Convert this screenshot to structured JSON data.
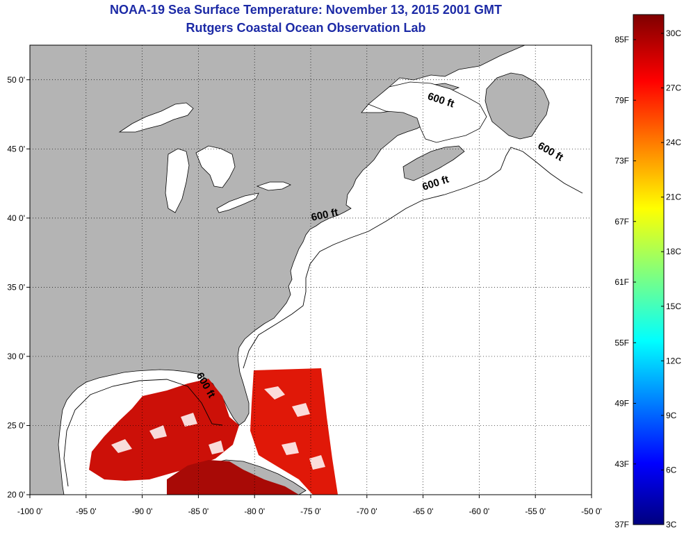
{
  "header": {
    "title_line1": "NOAA-19 Sea Surface Temperature:  November 13, 2015 2001 GMT",
    "title_line2": "Rutgers Coastal Ocean Observation Lab"
  },
  "map": {
    "lon_range": [
      -100,
      -50
    ],
    "lat_range": [
      20,
      52.5
    ],
    "lon_ticks": [
      -100,
      -95,
      -90,
      -85,
      -80,
      -75,
      -70,
      -65,
      -60,
      -55,
      -50
    ],
    "lat_ticks": [
      20,
      25,
      30,
      35,
      40,
      45,
      50
    ],
    "lon_labels": [
      "-100 0'",
      "-95 0'",
      "-90 0'",
      "-85 0'",
      "-80 0'",
      "-75 0'",
      "-70 0'",
      "-65 0'",
      "-60 0'",
      "-55 0'",
      "-50 0'"
    ],
    "lat_labels": [
      "20 0'",
      "25 0'",
      "30 0'",
      "35 0'",
      "40 0'",
      "45 0'",
      "50 0'"
    ],
    "grid": "dotted",
    "land_color": "#b4b4b4",
    "water_color": "#ffffff",
    "contour_labels": [
      {
        "text": "600 ft",
        "lon": -63.5,
        "lat": 48.3,
        "angle": 18
      },
      {
        "text": "600 ft",
        "lon": -53.8,
        "lat": 44.6,
        "angle": 30
      },
      {
        "text": "600 ft",
        "lon": -63.8,
        "lat": 42.3,
        "angle": -18
      },
      {
        "text": "600 ft",
        "lon": -73.7,
        "lat": 40.0,
        "angle": -12
      },
      {
        "text": "600 ft",
        "lon": -84.6,
        "lat": 27.8,
        "angle": 60
      }
    ]
  },
  "colorbar": {
    "position": "right",
    "f_labels": [
      "85F",
      "79F",
      "73F",
      "67F",
      "61F",
      "55F",
      "49F",
      "43F",
      "37F"
    ],
    "c_labels": [
      "30C",
      "27C",
      "24C",
      "21C",
      "18C",
      "15C",
      "12C",
      "9C",
      "6C",
      "3C"
    ],
    "colors": [
      "#7f0000",
      "#ff0000",
      "#ff7f00",
      "#ffff00",
      "#7fff7f",
      "#00ffff",
      "#007fff",
      "#0000ff",
      "#00007f"
    ]
  }
}
